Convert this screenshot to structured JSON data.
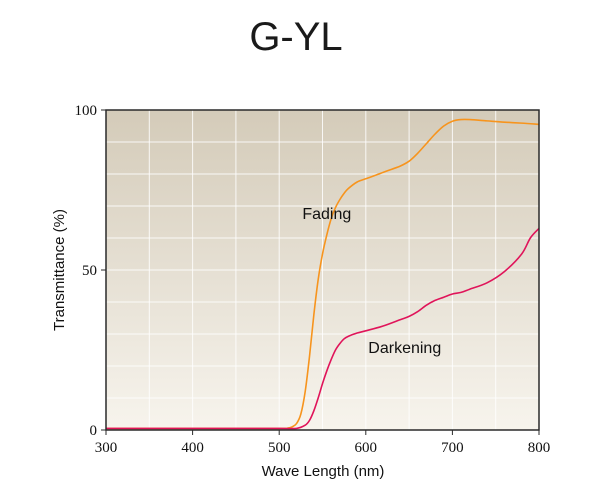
{
  "chart_data": {
    "type": "line",
    "title": "G-YL",
    "xlabel": "Wave Length (nm)",
    "ylabel": "Transmittance (%)",
    "xlim": [
      300,
      800
    ],
    "ylim": [
      0,
      100
    ],
    "x_ticks": [
      300,
      400,
      500,
      600,
      700,
      800
    ],
    "y_ticks": [
      0,
      50,
      100
    ],
    "grid": true,
    "colors": {
      "plot_background_top": "#d4cbb9",
      "plot_background_bottom": "#f7f4ed",
      "fading": "#f7941d",
      "darkening": "#e0145a"
    },
    "annotations": [
      {
        "text": "Fading",
        "x": 555,
        "y": 66
      },
      {
        "text": "Darkening",
        "x": 645,
        "y": 24
      }
    ],
    "series": [
      {
        "key": "fading",
        "x": [
          300,
          400,
          500,
          510,
          515,
          520,
          525,
          530,
          535,
          540,
          545,
          550,
          555,
          560,
          565,
          570,
          575,
          580,
          590,
          600,
          610,
          620,
          630,
          640,
          650,
          660,
          670,
          680,
          690,
          700,
          710,
          720,
          740,
          760,
          780,
          800
        ],
        "y": [
          0.5,
          0.5,
          0.5,
          0.6,
          1,
          2,
          5,
          12,
          23,
          36,
          47,
          55,
          61,
          66,
          69.5,
          72,
          74,
          75.5,
          77.5,
          78.5,
          79.5,
          80.5,
          81.5,
          82.5,
          84,
          86.5,
          89.5,
          92.5,
          95,
          96.5,
          97,
          97,
          96.6,
          96.2,
          95.9,
          95.5
        ]
      },
      {
        "key": "darkening",
        "x": [
          300,
          400,
          500,
          520,
          530,
          535,
          540,
          545,
          550,
          555,
          560,
          565,
          570,
          575,
          580,
          590,
          600,
          620,
          640,
          650,
          660,
          670,
          680,
          690,
          700,
          710,
          720,
          740,
          760,
          780,
          790,
          800
        ],
        "y": [
          0.5,
          0.5,
          0.5,
          0.5,
          1.5,
          3,
          6,
          10,
          14.5,
          18.5,
          22,
          25,
          27,
          28.5,
          29.3,
          30.3,
          31,
          32.5,
          34.5,
          35.5,
          37,
          39,
          40.5,
          41.5,
          42.5,
          43,
          44,
          46,
          49.5,
          55,
          60,
          63
        ]
      }
    ]
  }
}
